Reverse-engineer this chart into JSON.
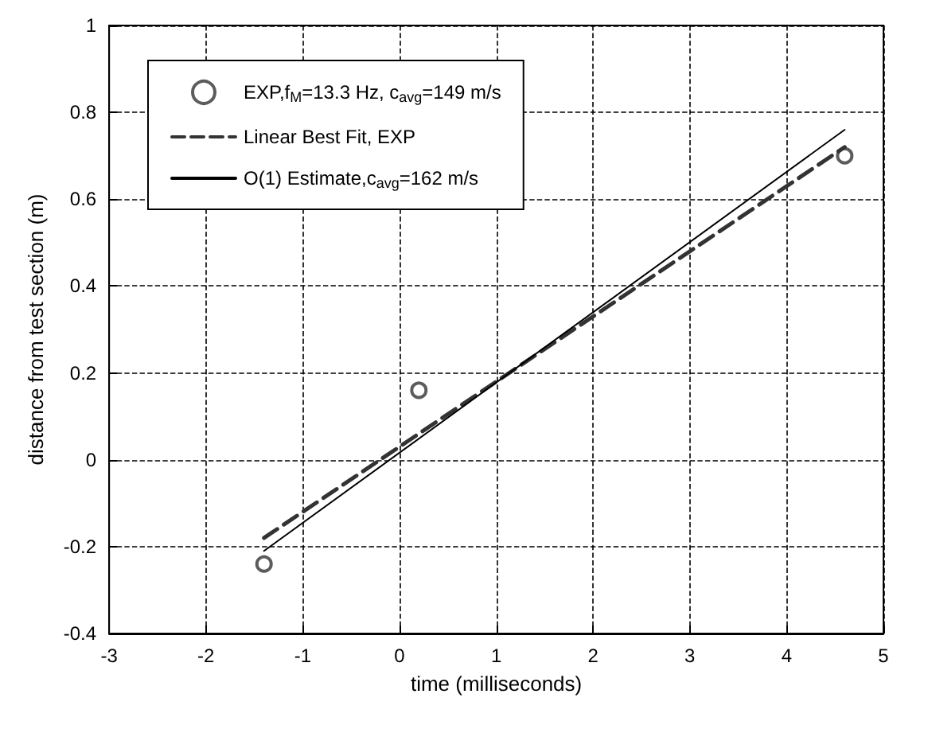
{
  "chart_data": {
    "type": "scatter",
    "xlabel": "time (milliseconds)",
    "ylabel": "distance from test section (m)",
    "xlim": [
      -3,
      5
    ],
    "xticks": [
      -3,
      -2,
      -1,
      0,
      1,
      2,
      3,
      4,
      5
    ],
    "ylim": [
      -0.4,
      1
    ],
    "yticks": [
      -0.4,
      -0.2,
      0,
      0.2,
      0.4,
      0.6,
      0.8,
      1
    ],
    "grid": true,
    "legend": "top left",
    "series": [
      {
        "name": "EXP,f$_{M}$=13.3 Hz, c$_{avg}$=149 m/s",
        "color": "#333333",
        "marker": "circle",
        "x": [
          -1.4,
          0.2,
          4.6
        ],
        "values": [
          -0.24,
          0.16,
          0.7
        ]
      },
      {
        "type": "line",
        "name": "Linear Best Fit, EXP",
        "color": "#333333",
        "line_style": "dashed",
        "marker": "none",
        "x": [
          -1.4,
          4.6
        ],
        "values": [
          -0.18,
          0.72
        ]
      },
      {
        "type": "line",
        "name": "O(1) Estimate,c$_{avg}$=162 m/s",
        "color": "#000000",
        "line_style": "solid",
        "marker": "none",
        "x": [
          -1.4,
          4.6
        ],
        "values": [
          -0.21,
          0.76
        ]
      }
    ]
  }
}
